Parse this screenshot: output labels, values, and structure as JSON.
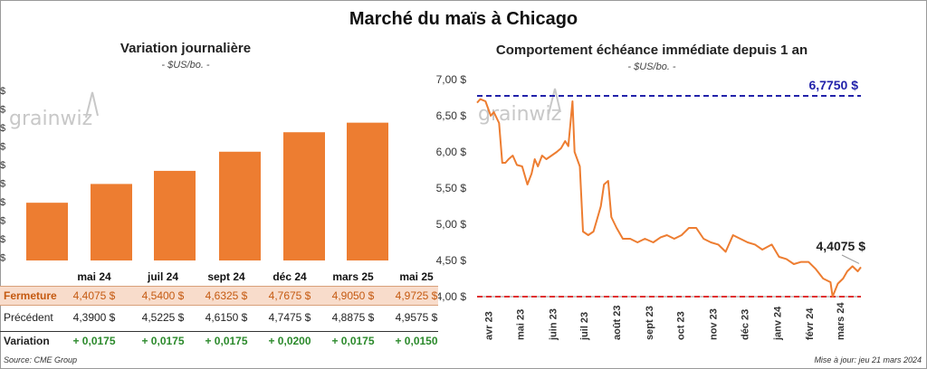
{
  "main_title": "Marché du maïs à Chicago",
  "left_title": "Variation journalière",
  "left_subtitle": "- $US/bo. -",
  "right_title": "Comportement échéance immédiate depuis 1 an",
  "right_subtitle": "- $US/bo. -",
  "watermark": "grainwiz",
  "colors": {
    "bar": "#ed7d31",
    "line": "#ed7d31",
    "high_line": "#2222aa",
    "low_line": "#e03030",
    "variation": "#2c8a2c"
  },
  "table": {
    "labels": {
      "close": "Fermeture",
      "prev": "Précédent",
      "var": "Variation"
    },
    "months": [
      "mai 24",
      "juil 24",
      "sept 24",
      "déc 24",
      "mars 25",
      "mai 25"
    ],
    "close": [
      "4,4075  $",
      "4,5400  $",
      "4,6325  $",
      "4,7675  $",
      "4,9050  $",
      "4,9725  $"
    ],
    "prev": [
      "4,3900  $",
      "4,5225  $",
      "4,6150  $",
      "4,7475  $",
      "4,8875  $",
      "4,9575  $"
    ],
    "var": [
      "+ 0,0175",
      "+ 0,0175",
      "+ 0,0175",
      "+ 0,0200",
      "+ 0,0175",
      "+ 0,0150"
    ]
  },
  "source": "Source: CME Group",
  "update": "Mise à jour: jeu 21 mars 2024",
  "chart_data": [
    {
      "type": "bar",
      "title": "Variation journalière",
      "subtitle": "- $US/bo. -",
      "categories": [
        "mai 24",
        "juil 24",
        "sept 24",
        "déc 24",
        "mars 25",
        "mai 25"
      ],
      "values": [
        4.4075,
        4.54,
        4.6325,
        4.7675,
        4.905,
        4.9725
      ],
      "y_tick_labels": [
        "$",
        "$",
        "$",
        "$",
        "$",
        "$",
        "$",
        "$",
        "$",
        "$"
      ],
      "grid": false
    },
    {
      "type": "line",
      "title": "Comportement échéance immédiate depuis 1 an",
      "subtitle": "- $US/bo. -",
      "ylim": [
        4.0,
        7.0
      ],
      "y_ticks": [
        4.0,
        4.5,
        5.0,
        5.5,
        6.0,
        6.5,
        7.0
      ],
      "y_tick_labels": [
        "4,00 $",
        "4,50 $",
        "5,00 $",
        "5,50 $",
        "6,00 $",
        "6,50 $",
        "7,00 $"
      ],
      "x_tick_labels": [
        "avr 23",
        "mai 23",
        "juin 23",
        "juil 23",
        "août 23",
        "sept 23",
        "oct 23",
        "nov 23",
        "déc 23",
        "janv 24",
        "févr 24",
        "mars 24"
      ],
      "x_range": [
        "2023-03-21",
        "2024-03-21"
      ],
      "high": {
        "value": 6.775,
        "label": "6,7750 $"
      },
      "low": {
        "value": 4.0
      },
      "last": {
        "value": 4.4075,
        "label": "4,4075 $"
      },
      "series": [
        {
          "x": [
            "2023-03-21",
            "2023-03-24",
            "2023-03-29",
            "2023-04-03",
            "2023-04-06",
            "2023-04-11",
            "2023-04-14",
            "2023-04-17",
            "2023-04-20",
            "2023-04-24",
            "2023-04-28",
            "2023-05-03",
            "2023-05-08",
            "2023-05-12",
            "2023-05-15",
            "2023-05-18",
            "2023-05-22",
            "2023-05-26",
            "2023-05-31",
            "2023-06-05",
            "2023-06-09",
            "2023-06-13",
            "2023-06-16",
            "2023-06-20",
            "2023-06-22",
            "2023-06-27",
            "2023-06-30",
            "2023-07-05",
            "2023-07-10",
            "2023-07-13",
            "2023-07-17",
            "2023-07-20",
            "2023-07-24",
            "2023-07-27",
            "2023-08-01",
            "2023-08-07",
            "2023-08-14",
            "2023-08-21",
            "2023-08-28",
            "2023-09-05",
            "2023-09-12",
            "2023-09-18",
            "2023-09-25",
            "2023-10-02",
            "2023-10-09",
            "2023-10-16",
            "2023-10-23",
            "2023-10-30",
            "2023-11-06",
            "2023-11-13",
            "2023-11-20",
            "2023-11-27",
            "2023-12-04",
            "2023-12-11",
            "2023-12-18",
            "2023-12-27",
            "2024-01-03",
            "2024-01-10",
            "2024-01-17",
            "2024-01-24",
            "2024-01-31",
            "2024-02-07",
            "2024-02-14",
            "2024-02-21",
            "2024-02-23",
            "2024-02-28",
            "2024-03-04",
            "2024-03-08",
            "2024-03-13",
            "2024-03-18",
            "2024-03-21"
          ],
          "y": [
            6.68,
            6.73,
            6.7,
            6.5,
            6.55,
            6.4,
            5.85,
            5.85,
            5.9,
            5.95,
            5.82,
            5.8,
            5.55,
            5.7,
            5.9,
            5.8,
            5.95,
            5.9,
            5.95,
            6.0,
            6.05,
            6.15,
            6.08,
            6.7,
            6.0,
            5.8,
            4.9,
            4.85,
            4.9,
            5.05,
            5.25,
            5.55,
            5.6,
            5.1,
            4.95,
            4.8,
            4.8,
            4.75,
            4.8,
            4.75,
            4.82,
            4.85,
            4.8,
            4.85,
            4.95,
            4.95,
            4.8,
            4.75,
            4.72,
            4.62,
            4.85,
            4.8,
            4.75,
            4.72,
            4.65,
            4.72,
            4.55,
            4.52,
            4.45,
            4.48,
            4.48,
            4.38,
            4.25,
            4.2,
            4.0,
            4.18,
            4.25,
            4.35,
            4.42,
            4.35,
            4.4075
          ]
        }
      ],
      "grid": false
    }
  ]
}
